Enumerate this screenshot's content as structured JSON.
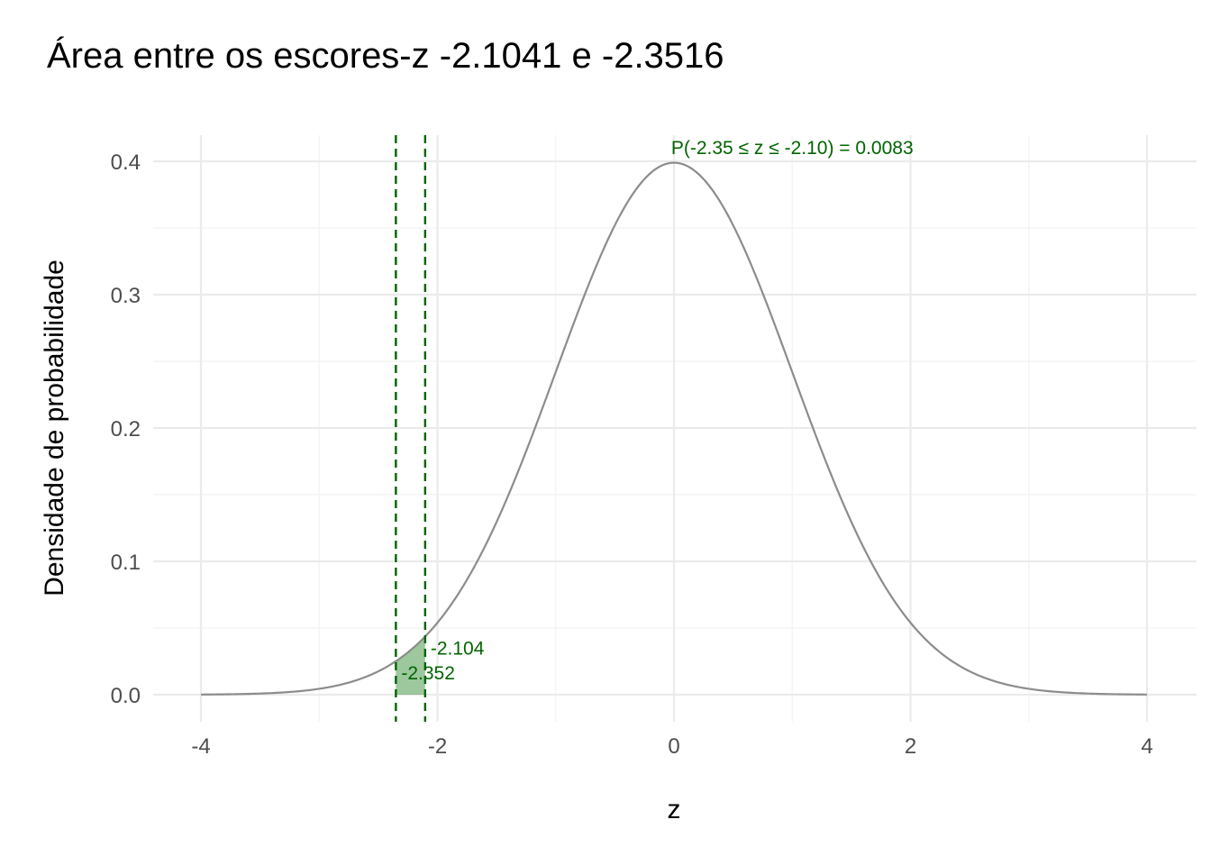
{
  "chart_data": {
    "type": "area",
    "title": "Área entre os escores-z -2.1041 e -2.3516",
    "xlabel": "z",
    "ylabel": "Densidade de probabilidade",
    "xlim": [
      -4,
      4
    ],
    "ylim": [
      0,
      0.4
    ],
    "x_ticks": [
      -4,
      -2,
      0,
      2,
      4
    ],
    "x_tick_labels": [
      "-4",
      "-2",
      "0",
      "2",
      "4"
    ],
    "y_ticks": [
      0.0,
      0.1,
      0.2,
      0.3,
      0.4
    ],
    "y_tick_labels": [
      "0.0",
      "0.1",
      "0.2",
      "0.3",
      "0.4"
    ],
    "grid": true,
    "curve": {
      "distribution": "standard normal",
      "mean": 0,
      "sd": 1
    },
    "shaded_region": {
      "from": -2.3516,
      "to": -2.1041
    },
    "reference_lines": [
      {
        "x": -2.3516,
        "label": "-2.352"
      },
      {
        "x": -2.1041,
        "label": "-2.104"
      }
    ],
    "annotation": {
      "text": "P(-2.35 ≤ z ≤ -2.10) = 0.0083",
      "x": 1.0,
      "y": 0.4
    },
    "colors": {
      "curve": "#8c8c8c",
      "shade": "#4c9a4c",
      "accent": "#006400",
      "grid": "#ebebeb"
    }
  }
}
